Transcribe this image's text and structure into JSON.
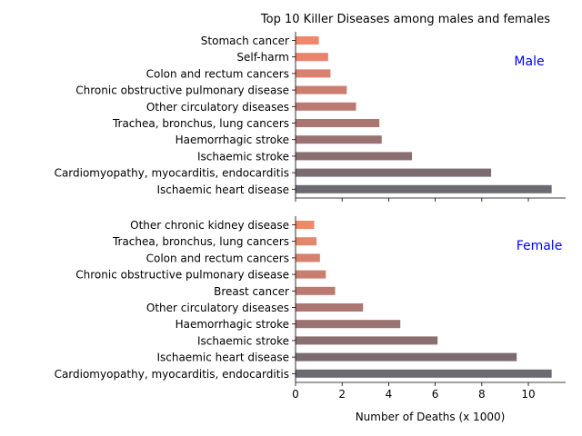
{
  "chart_data": {
    "type": "bar",
    "orientation": "horizontal",
    "title": "Top 10 Killer Diseases among males and females",
    "xlabel": "Number of Deaths (x 1000)",
    "xlim": [
      0,
      11.6
    ],
    "xticks": [
      "0",
      "2",
      "4",
      "6",
      "8",
      "10"
    ],
    "grid": false,
    "panels": [
      {
        "label": "Male",
        "label_color": "#0000ff",
        "categories": [
          "Stomach cancer",
          "Self-harm",
          "Colon and rectum cancers",
          "Chronic obstructive pulmonary disease",
          "Other circulatory diseases",
          "Trachea, bronchus, lung cancers",
          "Haemorrhagic stroke",
          "Ischaemic stroke",
          "Cardiomyopathy, myocarditis, endocarditis",
          "Ischaemic heart disease"
        ],
        "values": [
          1.0,
          1.4,
          1.5,
          2.2,
          2.6,
          3.6,
          3.7,
          5.0,
          8.4,
          11.0
        ]
      },
      {
        "label": "Female",
        "label_color": "#0000ff",
        "categories": [
          "Other chronic kidney disease",
          "Trachea, bronchus, lung cancers",
          "Colon and rectum cancers",
          "Chronic obstructive pulmonary disease",
          "Breast cancer",
          "Other circulatory diseases",
          "Haemorrhagic stroke",
          "Ischaemic stroke",
          "Ischaemic heart disease",
          "Cardiomyopathy, myocarditis, endocarditis"
        ],
        "values": [
          0.8,
          0.9,
          1.05,
          1.3,
          1.7,
          2.9,
          4.5,
          6.1,
          9.5,
          11.0
        ]
      }
    ],
    "bar_colors": [
      "#f0866a",
      "#e4856d",
      "#d7816e",
      "#c97e6f",
      "#bb7a71",
      "#ab7672",
      "#9b7272",
      "#8a6f72",
      "#7b6c71",
      "#6b6a70"
    ]
  }
}
